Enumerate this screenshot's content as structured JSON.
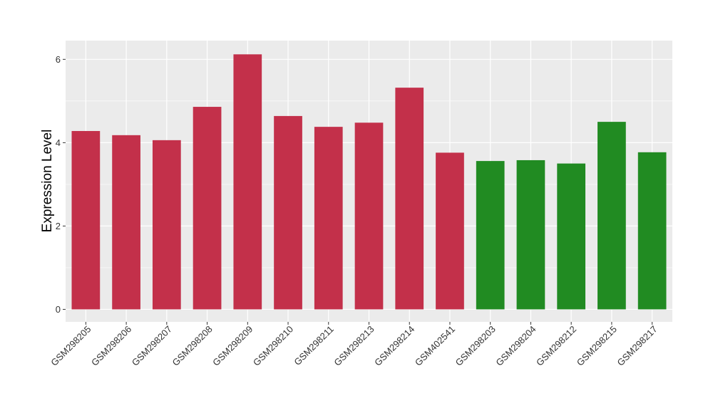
{
  "chart_data": {
    "type": "bar",
    "title": "",
    "xlabel": "",
    "ylabel": "Expression Level",
    "ylim": [
      -0.3,
      6.45
    ],
    "yticks": [
      0,
      2,
      4,
      6
    ],
    "grid": true,
    "legend": "none",
    "categories": [
      "GSM298205",
      "GSM298206",
      "GSM298207",
      "GSM298208",
      "GSM298209",
      "GSM298210",
      "GSM298211",
      "GSM298213",
      "GSM298214",
      "GSM402541",
      "GSM298203",
      "GSM298204",
      "GSM298212",
      "GSM298215",
      "GSM298217"
    ],
    "values": [
      4.28,
      4.18,
      4.06,
      4.86,
      6.12,
      4.64,
      4.38,
      4.48,
      5.32,
      3.76,
      3.56,
      3.58,
      3.5,
      4.5,
      3.77
    ],
    "groups": [
      0,
      0,
      0,
      0,
      0,
      0,
      0,
      0,
      0,
      0,
      1,
      1,
      1,
      1,
      1
    ],
    "group_colors": [
      "#c3304a",
      "#218b22"
    ],
    "panel_color": "#ebebeb",
    "grid_color": "#ffffff"
  }
}
